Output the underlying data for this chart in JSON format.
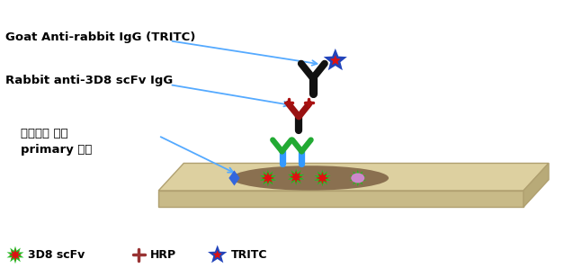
{
  "bg_color": "#ffffff",
  "plate_color": "#ddd0a0",
  "plate_edge_color": "#b0a070",
  "plate_front_color": "#c8ba88",
  "plate_right_color": "#b8aa78",
  "cell_color": "#8a7050",
  "arrow_color": "#55aaff",
  "label1": "Goat Anti-rabbit IgG (TRITC)",
  "label2": "Rabbit anti-3D8 scFv IgG",
  "label3": "형질전환 동물\nprimary 세포",
  "legend1": "3D8 scFv",
  "legend2": "HRP",
  "legend3": "TRITC",
  "font_size_labels": 9.5,
  "font_size_legend": 9
}
